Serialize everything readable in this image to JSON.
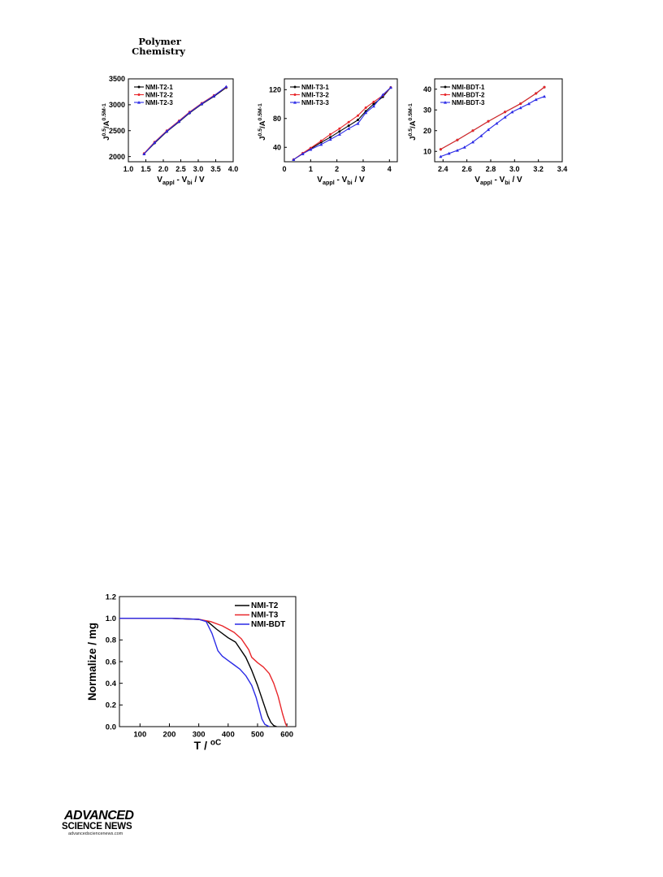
{
  "header": {
    "journal_line1": "Polymer",
    "journal_line2": "Chemistry"
  },
  "footer": {
    "logo_line1": "ADVANCED",
    "logo_line2": "SCIENCE NEWS",
    "url": "advancedsciencenews.com"
  },
  "colors": {
    "s1": "#000000",
    "s2": "#e8262a",
    "s3": "#2a2ae6"
  },
  "chart_data": [
    {
      "id": "t2",
      "type": "line",
      "xlabel": "V_appl - V_bi / V",
      "ylabel": "J^0.5/A^0.5M^-1",
      "xlim": [
        1.0,
        4.0
      ],
      "ylim": [
        1900,
        3500
      ],
      "xticks": [
        1.0,
        1.5,
        2.0,
        2.5,
        3.0,
        3.5,
        4.0
      ],
      "xtick_labels": [
        "1.0",
        "1.5",
        "2.0",
        "2.5",
        "3.0",
        "3.5",
        "4.0"
      ],
      "yticks": [
        2000,
        2500,
        3000,
        3500
      ],
      "ytick_labels": [
        "2000",
        "2500",
        "3000",
        "3500"
      ],
      "legend": "top-left",
      "series": [
        {
          "name": "NMI-T2-1",
          "x": [
            1.45,
            1.75,
            2.1,
            2.45,
            2.75,
            3.1,
            3.45,
            3.8
          ],
          "y": [
            2050,
            2260,
            2480,
            2670,
            2840,
            3010,
            3160,
            3330
          ]
        },
        {
          "name": "NMI-T2-2",
          "x": [
            1.45,
            1.75,
            2.1,
            2.45,
            2.75,
            3.1,
            3.45,
            3.8
          ],
          "y": [
            2060,
            2280,
            2500,
            2690,
            2860,
            3030,
            3180,
            3340
          ]
        },
        {
          "name": "NMI-T2-3",
          "x": [
            1.45,
            1.75,
            2.1,
            2.45,
            2.75,
            3.1,
            3.45,
            3.8
          ],
          "y": [
            2050,
            2270,
            2490,
            2680,
            2850,
            3020,
            3170,
            3350
          ]
        }
      ]
    },
    {
      "id": "t3",
      "type": "line",
      "xlabel": "V_appl - V_bi / V",
      "ylabel": "J^0.5/A^0.5M^-1",
      "xlim": [
        0,
        4.3
      ],
      "ylim": [
        20,
        135
      ],
      "xticks": [
        0,
        1,
        2,
        3,
        4
      ],
      "xtick_labels": [
        "0",
        "1",
        "2",
        "3",
        "4"
      ],
      "yticks": [
        40,
        80,
        120
      ],
      "ytick_labels": [
        "40",
        "80",
        "120"
      ],
      "legend": "top-left",
      "series": [
        {
          "name": "NMI-T3-1",
          "x": [
            0.35,
            0.7,
            1.0,
            1.4,
            1.75,
            2.1,
            2.45,
            2.8,
            3.1,
            3.4,
            3.75,
            4.05
          ],
          "y": [
            23,
            31,
            38,
            47,
            54,
            62,
            70,
            78,
            90,
            100,
            110,
            123
          ]
        },
        {
          "name": "NMI-T3-2",
          "x": [
            0.35,
            0.7,
            1.0,
            1.4,
            1.75,
            2.1,
            2.45,
            2.8,
            3.1,
            3.4,
            3.75,
            4.05
          ],
          "y": [
            23,
            32,
            39,
            49,
            58,
            66,
            75,
            84,
            95,
            103,
            112,
            123
          ]
        },
        {
          "name": "NMI-T3-3",
          "x": [
            0.35,
            0.7,
            1.0,
            1.4,
            1.75,
            2.1,
            2.45,
            2.8,
            3.1,
            3.4,
            3.75,
            4.05
          ],
          "y": [
            23,
            31,
            37,
            44,
            51,
            58,
            66,
            73,
            88,
            97,
            113,
            123
          ]
        }
      ]
    },
    {
      "id": "bdt",
      "type": "line",
      "xlabel": "V_appl - V_bi / V",
      "ylabel": "J^0.5/A^0.5M^-1",
      "xlim": [
        2.33,
        3.4
      ],
      "ylim": [
        5,
        45
      ],
      "xticks": [
        2.4,
        2.6,
        2.8,
        3.0,
        3.2,
        3.4
      ],
      "xtick_labels": [
        "2.4",
        "2.6",
        "2.8",
        "3.0",
        "3.2",
        "3.4"
      ],
      "yticks": [
        10,
        20,
        30,
        40
      ],
      "ytick_labels": [
        "10",
        "20",
        "30",
        "40"
      ],
      "legend": "top-left",
      "series": [
        {
          "name": "NMI-BDT-1",
          "x": [
            2.38,
            2.52,
            2.65,
            2.78,
            2.92,
            3.05,
            3.18,
            3.25
          ],
          "y": [
            11,
            15.5,
            20,
            24.5,
            29,
            33,
            38,
            41
          ]
        },
        {
          "name": "NMI-BDT-2",
          "x": [
            2.38,
            2.52,
            2.65,
            2.78,
            2.92,
            3.05,
            3.18,
            3.25
          ],
          "y": [
            11,
            15.5,
            20,
            24.5,
            29,
            33,
            38,
            41
          ]
        },
        {
          "name": "NMI-BDT-3",
          "x": [
            2.38,
            2.45,
            2.52,
            2.58,
            2.65,
            2.72,
            2.78,
            2.85,
            2.92,
            2.98,
            3.05,
            3.12,
            3.18,
            3.25
          ],
          "y": [
            7.5,
            9,
            10.5,
            12,
            14.5,
            17.5,
            20.5,
            23.5,
            26.5,
            29,
            31,
            33,
            35,
            36.5
          ]
        }
      ]
    },
    {
      "id": "tga",
      "type": "line",
      "xlabel": "T / oC",
      "ylabel": "Normalize / mg",
      "xlim": [
        30,
        630
      ],
      "ylim": [
        0,
        1.2
      ],
      "xticks": [
        100,
        200,
        300,
        400,
        500,
        600
      ],
      "xtick_labels": [
        "100",
        "200",
        "300",
        "400",
        "500",
        "600"
      ],
      "yticks": [
        0,
        0.2,
        0.4,
        0.6,
        0.8,
        1.0,
        1.2
      ],
      "ytick_labels": [
        "0.0",
        "0.2",
        "0.4",
        "0.6",
        "0.8",
        "1.0",
        "1.2"
      ],
      "legend": "top-right",
      "series": [
        {
          "name": "NMI-T2",
          "x": [
            30,
            200,
            300,
            330,
            360,
            400,
            425,
            440,
            460,
            480,
            500,
            520,
            535,
            545,
            555,
            565
          ],
          "y": [
            1.0,
            1.0,
            0.99,
            0.97,
            0.9,
            0.82,
            0.78,
            0.72,
            0.64,
            0.52,
            0.38,
            0.22,
            0.1,
            0.04,
            0.01,
            0.0
          ]
        },
        {
          "name": "NMI-T3",
          "x": [
            30,
            200,
            300,
            340,
            380,
            420,
            445,
            470,
            480,
            500,
            520,
            540,
            555,
            570,
            585,
            595,
            600
          ],
          "y": [
            1.0,
            1.0,
            0.99,
            0.97,
            0.93,
            0.87,
            0.81,
            0.71,
            0.64,
            0.59,
            0.55,
            0.49,
            0.4,
            0.28,
            0.12,
            0.03,
            0.0
          ]
        },
        {
          "name": "NMI-BDT",
          "x": [
            30,
            200,
            300,
            325,
            345,
            365,
            380,
            400,
            420,
            440,
            460,
            480,
            495,
            505,
            515,
            525,
            540
          ],
          "y": [
            1.0,
            1.0,
            0.99,
            0.97,
            0.86,
            0.7,
            0.65,
            0.61,
            0.57,
            0.53,
            0.47,
            0.38,
            0.27,
            0.17,
            0.07,
            0.02,
            0.0
          ]
        }
      ]
    }
  ]
}
